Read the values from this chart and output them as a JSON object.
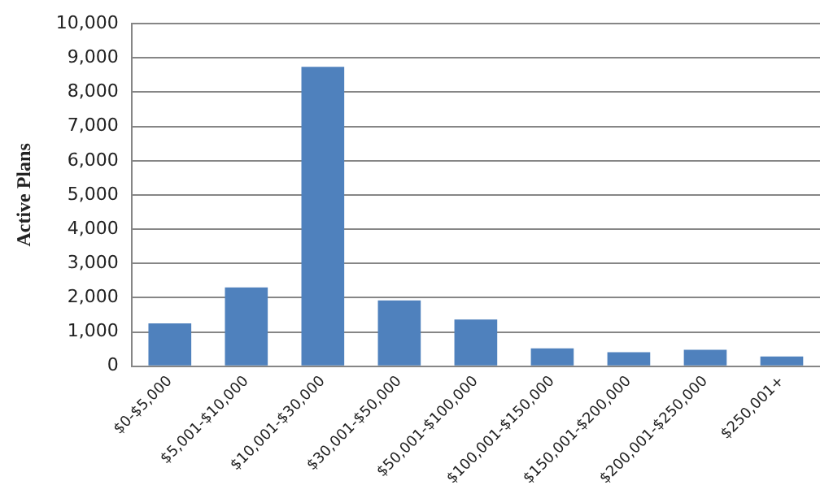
{
  "chart_data": {
    "type": "bar",
    "ylabel": "Active Plans",
    "categories": [
      "$0-$5,000",
      "$5,001-$10,000",
      "$10,001-$30,000",
      "$30,001-$50,000",
      "$50,001-$100,000",
      "$100,001-$150,000",
      "$150,001-$200,000",
      "$200,001-$250,000",
      "$250,001+"
    ],
    "values": [
      1250,
      2300,
      8740,
      1920,
      1360,
      520,
      410,
      480,
      280
    ],
    "color": "#4f81bd",
    "ylim": [
      0,
      10000
    ],
    "yticks": [
      0,
      {
        "value": 1000,
        "label": "1,000"
      },
      {
        "value": 2000,
        "label": "2,000"
      },
      {
        "value": 3000,
        "label": "3,000"
      },
      {
        "value": 4000,
        "label": "4,000"
      },
      {
        "value": 5000,
        "label": "5,000"
      },
      {
        "value": 6000,
        "label": "6,000"
      },
      {
        "value": 7000,
        "label": "7,000"
      },
      {
        "value": 8000,
        "label": "8,000"
      },
      {
        "value": 9000,
        "label": "9,000"
      },
      {
        "value": 10000,
        "label": "10,000"
      }
    ],
    "grid": "y",
    "legend": false
  }
}
